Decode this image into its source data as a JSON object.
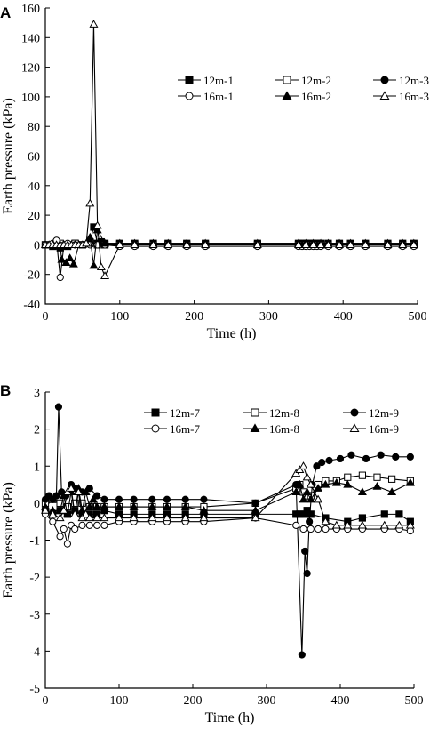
{
  "chart_data": [
    {
      "panel": "A",
      "type": "line",
      "xlabel": "Time (h)",
      "ylabel": "Earth pressure (kPa)",
      "xlim": [
        0,
        500
      ],
      "ylim": [
        -40,
        160
      ],
      "xticks": [
        0,
        100,
        200,
        300,
        400,
        500
      ],
      "yticks": [
        -40,
        -20,
        0,
        20,
        40,
        60,
        80,
        100,
        120,
        140,
        160
      ],
      "grid": false,
      "legend_position": "top-right",
      "series": [
        {
          "name": "12m-1",
          "marker": "square",
          "fill": "filled",
          "x": [
            0,
            10,
            20,
            30,
            40,
            50,
            60,
            65,
            70,
            75,
            80,
            100,
            120,
            145,
            165,
            190,
            215,
            285,
            340,
            345,
            350,
            355,
            360,
            365,
            370,
            380,
            395,
            410,
            430,
            460,
            480,
            495
          ],
          "y": [
            0,
            -1,
            -2,
            -1,
            1,
            0,
            2,
            12,
            1,
            2,
            1,
            1,
            1,
            1,
            1,
            1,
            1,
            1,
            1,
            1,
            1,
            1,
            1,
            1,
            1,
            1,
            1,
            1,
            1,
            1,
            1,
            1
          ]
        },
        {
          "name": "12m-2",
          "marker": "square",
          "fill": "open",
          "x": [
            0,
            10,
            20,
            30,
            40,
            50,
            60,
            70,
            80,
            100,
            120,
            145,
            165,
            190,
            215,
            285,
            340,
            350,
            360,
            370,
            380,
            395,
            410,
            430,
            460,
            480,
            495
          ],
          "y": [
            0,
            0,
            1,
            0,
            1,
            0,
            1,
            0,
            0,
            0,
            0,
            0,
            0,
            0,
            0,
            0,
            0,
            0,
            0,
            0,
            0,
            0,
            0,
            0,
            0,
            0,
            0
          ]
        },
        {
          "name": "12m-3",
          "marker": "circle",
          "fill": "filled",
          "x": [
            0,
            10,
            20,
            30,
            40,
            50,
            60,
            70,
            80,
            100,
            120,
            145,
            165,
            190,
            215,
            285,
            340,
            350,
            360,
            370,
            380,
            395,
            410,
            430,
            460,
            480,
            495
          ],
          "y": [
            0,
            0,
            -1,
            0,
            0,
            0,
            1,
            0,
            0,
            0,
            0,
            0,
            0,
            0,
            0,
            0,
            0,
            0,
            0,
            0,
            0,
            0,
            0,
            0,
            0,
            0,
            0
          ]
        },
        {
          "name": "16m-1",
          "marker": "circle",
          "fill": "open",
          "x": [
            0,
            10,
            15,
            20,
            25,
            30,
            40,
            50,
            60,
            70,
            80,
            100,
            120,
            145,
            165,
            190,
            215,
            285,
            340,
            345,
            350,
            355,
            360,
            365,
            370,
            380,
            395,
            410,
            430,
            460,
            480,
            495
          ],
          "y": [
            0,
            1,
            3,
            -22,
            0,
            1,
            0,
            0,
            0,
            0,
            0,
            -1,
            -1,
            -1,
            -1,
            -1,
            -1,
            -1,
            -1,
            -1,
            -1,
            -1,
            -1,
            -1,
            -1,
            -1,
            -1,
            -1,
            -1,
            -1,
            -1,
            -1
          ]
        },
        {
          "name": "16m-2",
          "marker": "triangle",
          "fill": "filled",
          "x": [
            0,
            10,
            20,
            22,
            28,
            33,
            38,
            45,
            55,
            60,
            65,
            70,
            80,
            100,
            120,
            145,
            165,
            190,
            215,
            285,
            340,
            350,
            360,
            370,
            380,
            395,
            410,
            430,
            460,
            480,
            495
          ],
          "y": [
            0,
            0,
            -1,
            -10,
            -12,
            -9,
            -13,
            0,
            1,
            5,
            -14,
            10,
            1,
            1,
            1,
            1,
            1,
            1,
            1,
            1,
            1,
            1,
            1,
            1,
            1,
            1,
            1,
            1,
            1,
            1,
            1
          ]
        },
        {
          "name": "16m-3",
          "marker": "triangle",
          "fill": "open",
          "x": [
            0,
            5,
            10,
            15,
            20,
            25,
            30,
            35,
            40,
            45,
            50,
            55,
            60,
            65,
            70,
            75,
            80,
            100,
            120,
            145,
            165,
            190,
            215,
            285,
            340,
            350,
            360,
            370,
            380,
            395,
            410,
            430,
            460,
            480,
            495
          ],
          "y": [
            0,
            0,
            0,
            0,
            0,
            0,
            0,
            0,
            0,
            0,
            0,
            1,
            28,
            149,
            13,
            -15,
            -21,
            0,
            0,
            0,
            0,
            0,
            0,
            0,
            0,
            0,
            0,
            0,
            0,
            0,
            0,
            0,
            0,
            0,
            0
          ]
        }
      ]
    },
    {
      "panel": "B",
      "type": "line",
      "xlabel": "Time (h)",
      "ylabel": "Earth pressure (kPa)",
      "xlim": [
        0,
        500
      ],
      "ylim": [
        -5,
        3
      ],
      "xticks": [
        0,
        100,
        200,
        300,
        400,
        500
      ],
      "yticks": [
        -5,
        -4,
        -3,
        -2,
        -1,
        0,
        1,
        2,
        3
      ],
      "grid": false,
      "legend_position": "top-right",
      "series": [
        {
          "name": "12m-7",
          "marker": "square",
          "fill": "filled",
          "x": [
            0,
            10,
            20,
            30,
            40,
            50,
            60,
            70,
            80,
            100,
            120,
            145,
            165,
            190,
            215,
            285,
            340,
            345,
            350,
            355,
            360,
            380,
            410,
            430,
            460,
            480,
            495
          ],
          "y": [
            -0.2,
            -0.3,
            -0.2,
            -0.3,
            -0.2,
            -0.3,
            -0.3,
            -0.3,
            -0.2,
            -0.3,
            -0.3,
            -0.3,
            -0.3,
            -0.3,
            -0.3,
            -0.3,
            -0.3,
            -0.3,
            -0.3,
            -0.2,
            -0.3,
            -0.4,
            -0.5,
            -0.4,
            -0.3,
            -0.3,
            -0.5
          ]
        },
        {
          "name": "12m-8",
          "marker": "square",
          "fill": "open",
          "x": [
            0,
            10,
            20,
            30,
            40,
            50,
            60,
            70,
            80,
            100,
            120,
            145,
            165,
            190,
            215,
            285,
            340,
            345,
            350,
            355,
            360,
            370,
            380,
            395,
            410,
            430,
            450,
            470,
            495
          ],
          "y": [
            0,
            0.1,
            0,
            -0.1,
            0,
            0,
            -0.1,
            -0.1,
            -0.1,
            -0.1,
            -0.1,
            -0.1,
            -0.1,
            -0.1,
            -0.1,
            0,
            0.4,
            0.5,
            0.3,
            0.2,
            0.2,
            0.5,
            0.6,
            0.6,
            0.7,
            0.75,
            0.7,
            0.65,
            0.6
          ]
        },
        {
          "name": "12m-9",
          "marker": "circle",
          "fill": "filled",
          "x": [
            0,
            5,
            10,
            15,
            18,
            22,
            28,
            35,
            40,
            45,
            50,
            60,
            70,
            80,
            100,
            120,
            145,
            165,
            190,
            215,
            285,
            340,
            348,
            352,
            355,
            358,
            362,
            368,
            375,
            385,
            400,
            415,
            435,
            455,
            475,
            495
          ],
          "y": [
            0.1,
            0.2,
            0.1,
            0.2,
            2.6,
            0.3,
            0.2,
            0.5,
            0.4,
            0.3,
            0.3,
            0.4,
            0.2,
            0.1,
            0.1,
            0.1,
            0.1,
            0.1,
            0.1,
            0.1,
            0,
            0.5,
            -4.1,
            -1.3,
            -1.9,
            -0.5,
            0.5,
            1.0,
            1.1,
            1.15,
            1.2,
            1.3,
            1.2,
            1.3,
            1.25,
            1.25
          ]
        },
        {
          "name": "16m-7",
          "marker": "circle",
          "fill": "open",
          "x": [
            0,
            10,
            20,
            25,
            30,
            35,
            40,
            50,
            60,
            70,
            80,
            100,
            120,
            145,
            165,
            190,
            215,
            285,
            340,
            350,
            360,
            370,
            380,
            395,
            410,
            430,
            460,
            480,
            495
          ],
          "y": [
            -0.3,
            -0.5,
            -0.9,
            -0.7,
            -1.1,
            -0.6,
            -0.7,
            -0.6,
            -0.6,
            -0.6,
            -0.6,
            -0.5,
            -0.5,
            -0.5,
            -0.5,
            -0.5,
            -0.5,
            -0.4,
            -0.6,
            -0.7,
            -0.7,
            -0.7,
            -0.7,
            -0.7,
            -0.7,
            -0.7,
            -0.7,
            -0.7,
            -0.75
          ]
        },
        {
          "name": "16m-8",
          "marker": "triangle",
          "fill": "filled",
          "x": [
            0,
            10,
            20,
            25,
            30,
            35,
            40,
            45,
            50,
            55,
            60,
            65,
            70,
            80,
            100,
            120,
            145,
            165,
            190,
            215,
            285,
            340,
            345,
            350,
            355,
            360,
            370,
            380,
            395,
            410,
            430,
            450,
            470,
            495
          ],
          "y": [
            -0.1,
            -0.2,
            -0.2,
            0.2,
            -0.3,
            0.3,
            -0.3,
            0.4,
            -0.2,
            0.3,
            -0.1,
            0.1,
            -0.1,
            -0.1,
            -0.1,
            -0.1,
            -0.1,
            -0.1,
            -0.1,
            -0.2,
            -0.2,
            0.3,
            0.5,
            0.1,
            0.3,
            0.1,
            0.4,
            0.5,
            0.55,
            0.5,
            0.3,
            0.45,
            0.3,
            0.55
          ]
        },
        {
          "name": "16m-9",
          "marker": "triangle",
          "fill": "open",
          "x": [
            0,
            10,
            20,
            25,
            30,
            35,
            40,
            45,
            50,
            55,
            60,
            70,
            80,
            100,
            120,
            145,
            165,
            190,
            215,
            285,
            340,
            345,
            350,
            355,
            360,
            370,
            380,
            395,
            410,
            430,
            460,
            480,
            495
          ],
          "y": [
            -0.2,
            -0.3,
            -0.4,
            -0.2,
            0.3,
            0.4,
            -0.3,
            0.3,
            -0.4,
            -0.3,
            -0.4,
            -0.4,
            -0.4,
            -0.4,
            -0.4,
            -0.4,
            -0.4,
            -0.4,
            -0.4,
            -0.4,
            0.8,
            0.9,
            1.0,
            0.7,
            0.5,
            0.1,
            -0.5,
            -0.6,
            -0.6,
            -0.6,
            -0.6,
            -0.6,
            -0.6
          ]
        }
      ]
    }
  ]
}
